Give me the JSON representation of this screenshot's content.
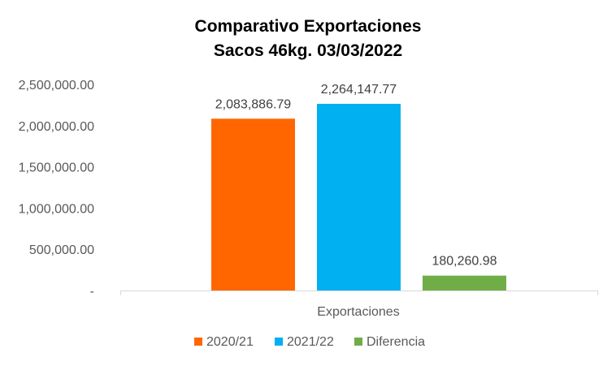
{
  "chart_data": {
    "type": "bar",
    "title_line1": "Comparativo  Exportaciones",
    "title_line2": "Sacos 46kg. 03/03/2022",
    "categories": [
      "Exportaciones"
    ],
    "series": [
      {
        "name": "2020/21",
        "values": [
          2083886.79
        ],
        "label": "2,083,886.79",
        "color": "#FF6600"
      },
      {
        "name": "2021/22",
        "values": [
          2264147.77
        ],
        "label": "2,264,147.77",
        "color": "#00B0F0"
      },
      {
        "name": "Diferencia",
        "values": [
          180260.98
        ],
        "label": "180,260.98",
        "color": "#70AD47"
      }
    ],
    "ylim": [
      0,
      2500000
    ],
    "yticks": [
      {
        "value": 0,
        "label": "-"
      },
      {
        "value": 500000,
        "label": "500,000.00"
      },
      {
        "value": 1000000,
        "label": "1,000,000.00"
      },
      {
        "value": 1500000,
        "label": "1,500,000.00"
      },
      {
        "value": 2000000,
        "label": "2,000,000.00"
      },
      {
        "value": 2500000,
        "label": "2,500,000.00"
      }
    ],
    "grid": false,
    "legend_position": "bottom",
    "axis_color": "#D9D9D9"
  }
}
